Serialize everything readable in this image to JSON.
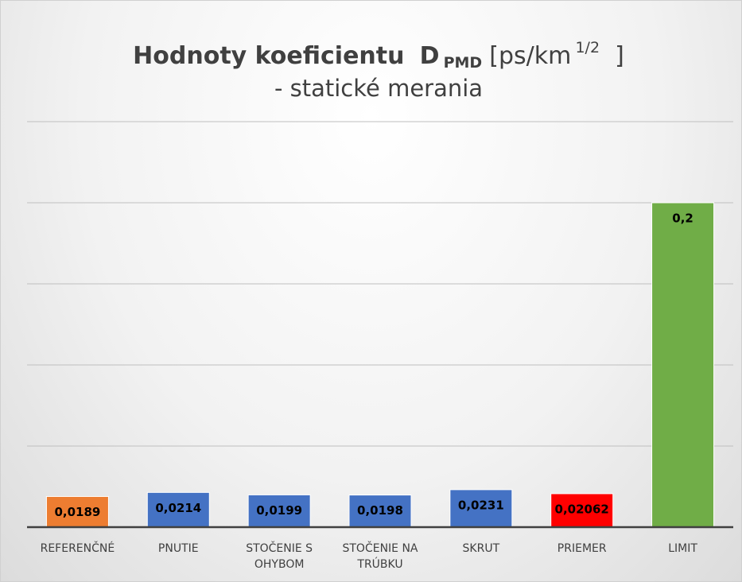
{
  "chart_data": {
    "type": "bar",
    "title": [
      "Hodnoty koeficientu",
      "D",
      "PMD",
      "[ps/km",
      "1/2",
      "]"
    ],
    "subtitle": "- statické merania",
    "categories": [
      "REFERENČNÉ",
      "PNUTIE",
      "STOČENIE S OHYBOM",
      "STOČENIE NA TRÚBKU",
      "SKRUT",
      "PRIEMER",
      "LIMIT"
    ],
    "values": [
      0.0189,
      0.0214,
      0.0199,
      0.0198,
      0.0231,
      0.02062,
      0.2
    ],
    "value_labels": [
      "0,0189",
      "0,0214",
      "0,0199",
      "0,0198",
      "0,0231",
      "0,02062",
      "0,2"
    ],
    "colors": [
      "#ed7d31",
      "#4472c4",
      "#4472c4",
      "#4472c4",
      "#4472c4",
      "#ff0000",
      "#70ad47"
    ],
    "ylim": [
      0,
      0.25
    ],
    "yticks": [
      0,
      0.05,
      0.1,
      0.15,
      0.2,
      0.25
    ],
    "grid": true
  }
}
